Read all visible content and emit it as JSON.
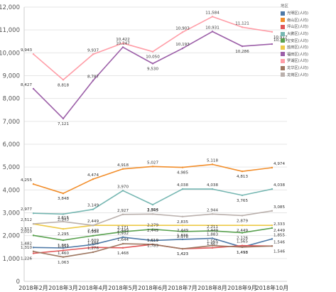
{
  "chart_data": {
    "type": "line",
    "categories": [
      "2018年2月",
      "2018年3月",
      "2018年4月",
      "2018年5月",
      "2018年6月",
      "2018年7月",
      "2018年8月",
      "2018年9月",
      "2018年10月"
    ],
    "ylim": [
      0,
      12000
    ],
    "yticks": [
      0,
      1000,
      2000,
      3000,
      4000,
      5000,
      6000,
      7000,
      8000,
      9000,
      10000,
      11000,
      12000
    ],
    "ytick_labels": [
      "0",
      "1,000",
      "2,000",
      "3,000",
      "4,000",
      "5,000",
      "6,000",
      "7,000",
      "8,000",
      "9,000",
      "10,000",
      "11,000",
      "12,000"
    ],
    "grid": "horizontal",
    "legend_position": "top-right",
    "legend_title": "地区",
    "series": [
      {
        "name": "光明区(人均)",
        "color": "#4e79a7",
        "values": [
          1482,
          1460,
          1609,
          1932,
          1783,
          1836,
          1883,
          1498,
          1855
        ],
        "labels": [
          "1,482",
          "1,460",
          "1,609",
          "1,932",
          "1,783",
          "1,836",
          "1,883",
          "1,498",
          "1,855"
        ]
      },
      {
        "name": "南山区(人均)",
        "color": "#f28e2b",
        "values": [
          4255,
          3848,
          4474,
          4918,
          5027,
          4985,
          5118,
          4813,
          4974
        ],
        "labels": [
          "4,255",
          "3,848",
          "4,474",
          "4,918",
          "5,027",
          "4,985",
          "5,118",
          "4,813",
          "4,974"
        ]
      },
      {
        "name": "坪山区(人均)",
        "color": "#e15759",
        "values": [
          1226,
          1352,
          1486,
          1468,
          1619,
          1423,
          1467,
          1565,
          1546
        ],
        "labels": [
          "1,226",
          "1,352",
          "1,486",
          "1,468",
          "1,619",
          "1,423",
          "1,467",
          "1,565",
          "1,546"
        ]
      },
      {
        "name": "大鹏区(人均)",
        "color": "#76b7b2",
        "values": [
          2977,
          2943,
          3149,
          3970,
          3354,
          4038,
          4038,
          3765,
          4038
        ],
        "labels": [
          "2,977",
          "2,943",
          "3,149",
          "3,970",
          "3,354",
          "4,038",
          "4,038",
          "3,765",
          "4,038"
        ]
      },
      {
        "name": "宝安区(人均)",
        "color": "#59a14f",
        "values": [
          2010,
          1801,
          1996,
          2171,
          2279,
          2178,
          2211,
          2126,
          2333
        ],
        "labels": [
          "2,010",
          "1,801",
          "1,996",
          "2,171",
          "2,279",
          "2,178",
          "2,211",
          "2,126",
          "2,333"
        ]
      },
      {
        "name": "盐田区(人均)",
        "color": "#edc948",
        "values": [
          2512,
          2295,
          2449,
          2449,
          2449,
          2449,
          2449,
          2449,
          2449
        ],
        "labels": [
          "2,512",
          "2,295",
          "2,449",
          "2,449",
          "2,449",
          "2,449",
          "2,449",
          "2,449",
          "2,449"
        ]
      },
      {
        "name": "福田区(人均)",
        "color": "#9c5fa8",
        "values": [
          8427,
          7121,
          8787,
          10247,
          9530,
          10193,
          10931,
          10286,
          10383
        ],
        "labels": [
          "8,427",
          "7,121",
          "8,787",
          "10,247",
          "9,530",
          "10,193",
          "10,931",
          "10,286",
          "10,383"
        ]
      },
      {
        "name": "罗湖区(人均)",
        "color": "#ff9da7",
        "values": [
          9943,
          8818,
          9937,
          10422,
          10050,
          10903,
          11584,
          11121,
          10917
        ],
        "labels": [
          "9,943",
          "8,818",
          "9,937",
          "10,422",
          "10,050",
          "10,903",
          "11,584",
          "11,121",
          "10,917"
        ]
      },
      {
        "name": "龙华区(人均)",
        "color": "#9d7660",
        "values": [
          1310,
          1063,
          1276,
          1644,
          1619,
          1423,
          1565,
          1498,
          1546
        ],
        "labels": [
          "1,310",
          "1,063",
          "1,276",
          "1,644",
          "1,619",
          "1,423",
          "1,565",
          "1,498",
          "1,546"
        ]
      },
      {
        "name": "龙岗区(人均)",
        "color": "#bab0ac",
        "values": [
          2517,
          2615,
          2449,
          2927,
          2945,
          2835,
          2944,
          2879,
          3085
        ],
        "labels": [
          "2,517",
          "2,615",
          "2,449",
          "2,927",
          "2,945",
          "2,835",
          "2,944",
          "2,879",
          "3,085"
        ]
      }
    ]
  }
}
